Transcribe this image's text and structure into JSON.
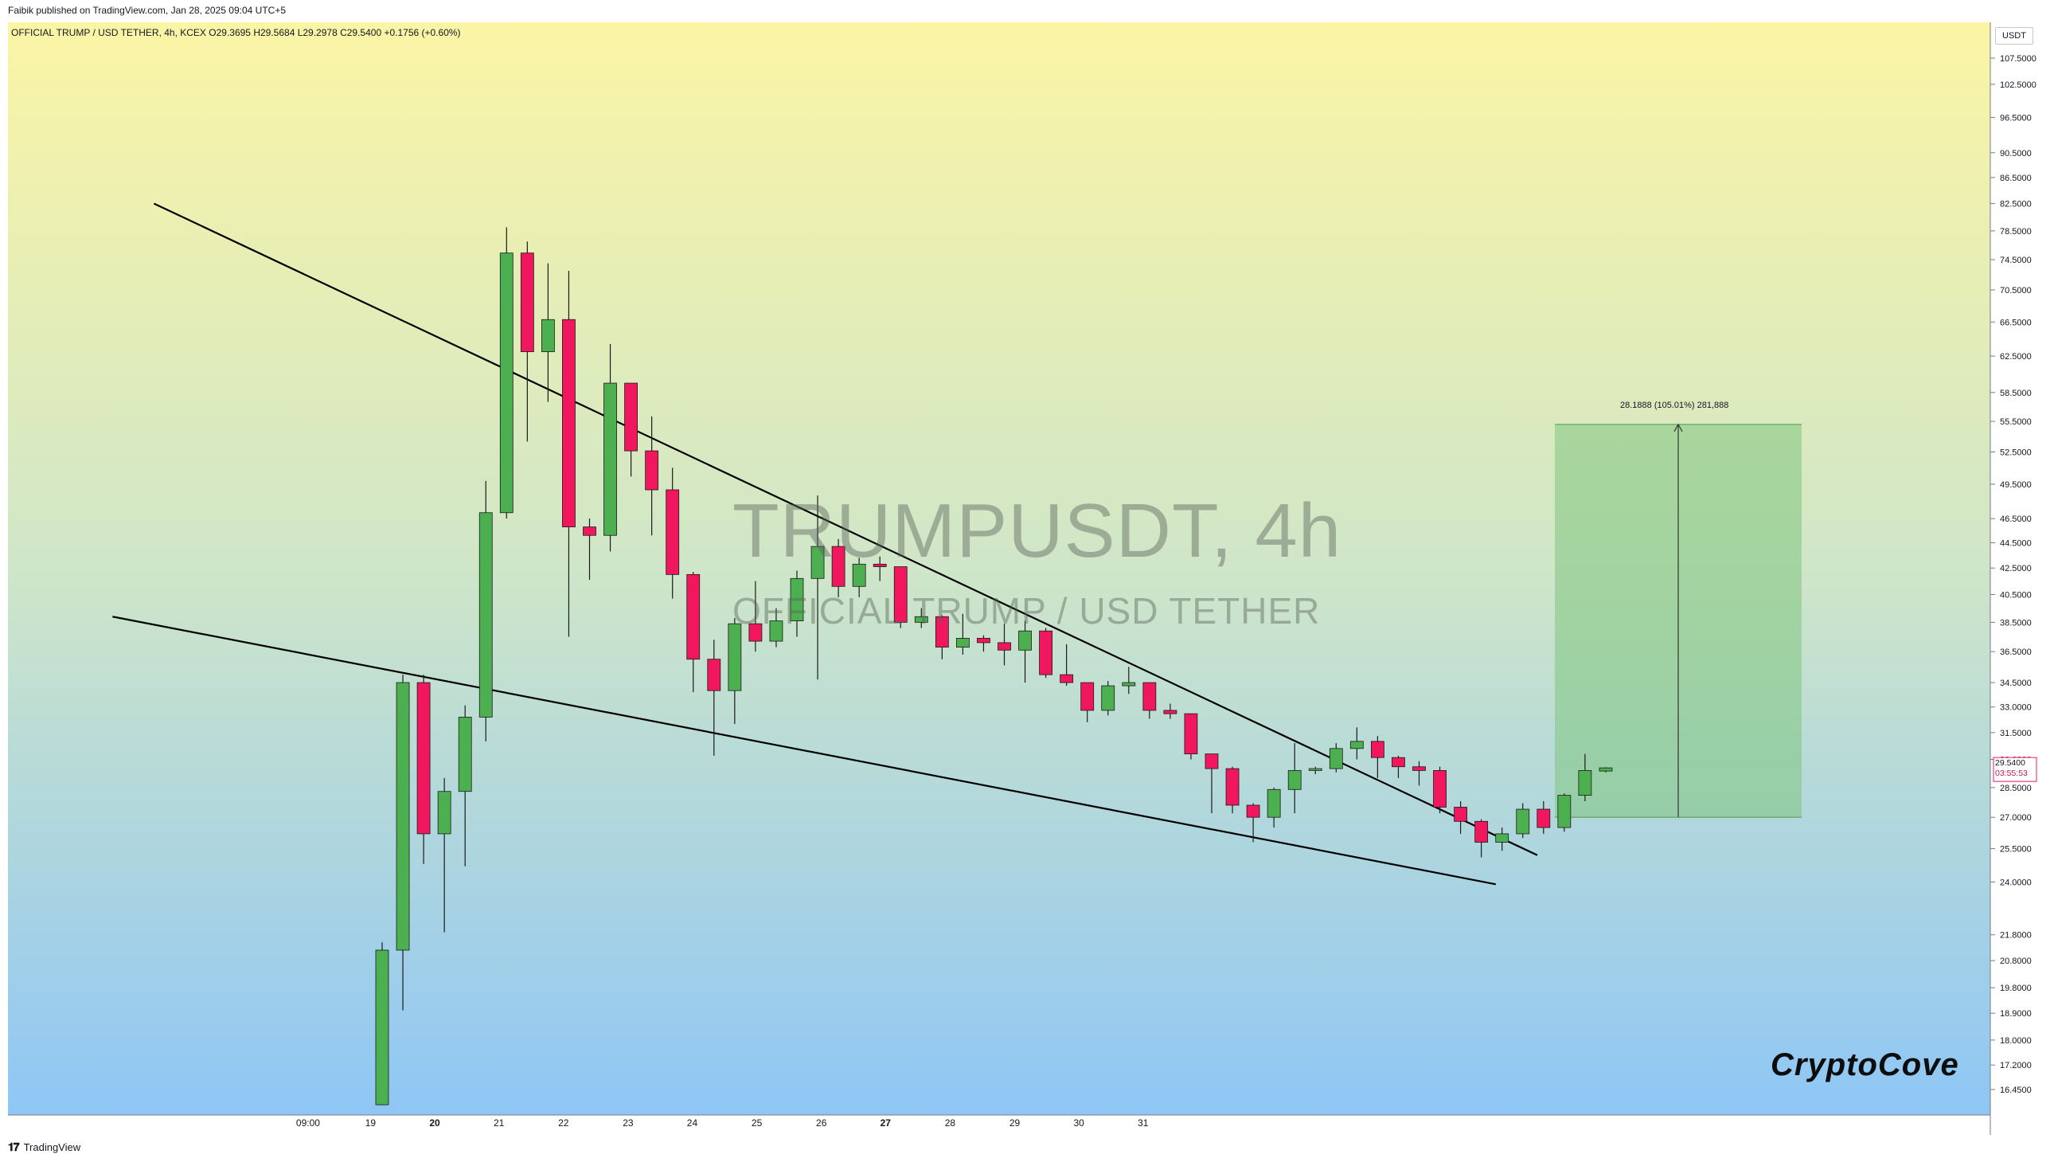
{
  "header": {
    "publisher_line": "Faibik published on TradingView.com, Jan 28, 2025 09:04 UTC+5",
    "symbol_line": "OFFICIAL TRUMP / USD TETHER, 4h, KCEX  O29.3695  H29.5684  L29.2978  C29.5400  +0.1756 (+0.60%)"
  },
  "watermark": {
    "title": "TRUMPUSDT, 4h",
    "subtitle": "OFFICIAL TRUMP / USD TETHER"
  },
  "brand": "CryptoCove",
  "footer": {
    "logo_glyph": "𝟏𝟕",
    "logo_text": "TradingView"
  },
  "price_axis": {
    "currency": "USDT",
    "scale": "log",
    "ticks": [
      "107.5000",
      "102.5000",
      "96.5000",
      "90.5000",
      "86.5000",
      "82.5000",
      "78.5000",
      "74.5000",
      "70.5000",
      "66.5000",
      "62.5000",
      "58.5000",
      "55.5000",
      "52.5000",
      "49.5000",
      "46.5000",
      "44.5000",
      "42.5000",
      "40.5000",
      "38.5000",
      "36.5000",
      "34.5000",
      "33.0000",
      "31.5000",
      "30.0000",
      "28.5000",
      "27.0000",
      "25.5000",
      "24.0000",
      "21.8000",
      "20.8000",
      "19.8000",
      "18.9000",
      "18.0000",
      "17.2000",
      "16.4500"
    ],
    "current_price": "29.5400",
    "countdown": "03:55:53"
  },
  "time_axis": {
    "ticks": [
      "09:00",
      "19",
      "20",
      "21",
      "22",
      "23",
      "24",
      "25",
      "26",
      "27",
      "28",
      "29",
      "30",
      "31"
    ],
    "bold_ticks": [
      "20",
      "27"
    ]
  },
  "measure_tool": {
    "label": "28.1888 (105.01%) 281,888",
    "from_price": 27.0,
    "to_price": 55.2
  },
  "colors": {
    "up": "#4caf50",
    "down": "#f0175f",
    "trendline": "#000000",
    "bg_top": "#fbf5a5",
    "bg_bottom": "#8ec6f5",
    "target_zone": "#7fc47f"
  },
  "chart_data": {
    "type": "candlestick",
    "title": "OFFICIAL TRUMP / USD TETHER, 4h, KCEX",
    "interval": "4h",
    "y_scale": "log",
    "ylim": [
      15.9,
      112
    ],
    "x_unit": "4h bars from Jan 19 09:00",
    "candles": [
      {
        "o": 16.0,
        "h": 21.5,
        "l": 16.0,
        "c": 21.2
      },
      {
        "o": 21.2,
        "h": 35.0,
        "l": 19.0,
        "c": 34.5
      },
      {
        "o": 34.5,
        "h": 35.0,
        "l": 24.8,
        "c": 26.2
      },
      {
        "o": 26.2,
        "h": 29.0,
        "l": 21.9,
        "c": 28.3
      },
      {
        "o": 28.3,
        "h": 33.1,
        "l": 24.7,
        "c": 32.4
      },
      {
        "o": 32.4,
        "h": 49.8,
        "l": 31.0,
        "c": 47.0
      },
      {
        "o": 47.0,
        "h": 79.0,
        "l": 46.5,
        "c": 75.4
      },
      {
        "o": 75.4,
        "h": 77.0,
        "l": 53.5,
        "c": 63.0
      },
      {
        "o": 63.0,
        "h": 74.0,
        "l": 57.5,
        "c": 66.8
      },
      {
        "o": 66.8,
        "h": 73.0,
        "l": 37.5,
        "c": 45.8
      },
      {
        "o": 45.8,
        "h": 46.5,
        "l": 41.6,
        "c": 45.1
      },
      {
        "o": 45.1,
        "h": 63.9,
        "l": 43.8,
        "c": 59.5
      },
      {
        "o": 59.5,
        "h": 59.5,
        "l": 50.2,
        "c": 52.6
      },
      {
        "o": 52.6,
        "h": 56.0,
        "l": 45.1,
        "c": 49.0
      },
      {
        "o": 49.0,
        "h": 51.0,
        "l": 40.2,
        "c": 42.0
      },
      {
        "o": 42.0,
        "h": 42.2,
        "l": 33.9,
        "c": 36.0
      },
      {
        "o": 36.0,
        "h": 37.3,
        "l": 30.2,
        "c": 34.0
      },
      {
        "o": 34.0,
        "h": 38.8,
        "l": 32.0,
        "c": 38.4
      },
      {
        "o": 38.4,
        "h": 41.5,
        "l": 36.5,
        "c": 37.2
      },
      {
        "o": 37.2,
        "h": 39.5,
        "l": 36.8,
        "c": 38.6
      },
      {
        "o": 38.6,
        "h": 42.3,
        "l": 37.5,
        "c": 41.7
      },
      {
        "o": 41.7,
        "h": 48.5,
        "l": 34.7,
        "c": 44.2
      },
      {
        "o": 44.2,
        "h": 44.8,
        "l": 40.3,
        "c": 41.1
      },
      {
        "o": 41.1,
        "h": 43.3,
        "l": 40.3,
        "c": 42.8
      },
      {
        "o": 42.8,
        "h": 43.4,
        "l": 41.5,
        "c": 42.6
      },
      {
        "o": 42.6,
        "h": 42.6,
        "l": 38.1,
        "c": 38.5
      },
      {
        "o": 38.5,
        "h": 39.5,
        "l": 38.1,
        "c": 38.9
      },
      {
        "o": 38.9,
        "h": 39.0,
        "l": 36.0,
        "c": 36.8
      },
      {
        "o": 36.8,
        "h": 39.1,
        "l": 36.3,
        "c": 37.4
      },
      {
        "o": 37.4,
        "h": 37.6,
        "l": 36.5,
        "c": 37.1
      },
      {
        "o": 37.1,
        "h": 38.4,
        "l": 35.6,
        "c": 36.6
      },
      {
        "o": 36.6,
        "h": 38.6,
        "l": 34.5,
        "c": 37.9
      },
      {
        "o": 37.9,
        "h": 38.1,
        "l": 34.8,
        "c": 35.0
      },
      {
        "o": 35.0,
        "h": 37.0,
        "l": 34.3,
        "c": 34.5
      },
      {
        "o": 34.5,
        "h": 34.5,
        "l": 32.1,
        "c": 32.8
      },
      {
        "o": 32.8,
        "h": 34.6,
        "l": 32.5,
        "c": 34.3
      },
      {
        "o": 34.3,
        "h": 35.5,
        "l": 33.8,
        "c": 34.5
      },
      {
        "o": 34.5,
        "h": 34.5,
        "l": 32.3,
        "c": 32.8
      },
      {
        "o": 32.8,
        "h": 33.2,
        "l": 32.3,
        "c": 32.6
      },
      {
        "o": 32.6,
        "h": 32.6,
        "l": 30.0,
        "c": 30.3
      },
      {
        "o": 30.3,
        "h": 30.3,
        "l": 27.2,
        "c": 29.5
      },
      {
        "o": 29.5,
        "h": 29.6,
        "l": 27.2,
        "c": 27.6
      },
      {
        "o": 27.6,
        "h": 27.7,
        "l": 25.8,
        "c": 27.0
      },
      {
        "o": 27.0,
        "h": 28.5,
        "l": 26.5,
        "c": 28.4
      },
      {
        "o": 28.4,
        "h": 30.9,
        "l": 27.2,
        "c": 29.4
      },
      {
        "o": 29.4,
        "h": 29.6,
        "l": 29.2,
        "c": 29.5
      },
      {
        "o": 29.5,
        "h": 30.9,
        "l": 29.3,
        "c": 30.6
      },
      {
        "o": 30.6,
        "h": 31.8,
        "l": 30.0,
        "c": 31.0
      },
      {
        "o": 31.0,
        "h": 31.3,
        "l": 29.0,
        "c": 30.1
      },
      {
        "o": 30.1,
        "h": 30.2,
        "l": 29.0,
        "c": 29.6
      },
      {
        "o": 29.6,
        "h": 29.9,
        "l": 28.6,
        "c": 29.4
      },
      {
        "o": 29.4,
        "h": 29.6,
        "l": 27.2,
        "c": 27.5
      },
      {
        "o": 27.5,
        "h": 27.8,
        "l": 26.2,
        "c": 26.8
      },
      {
        "o": 26.8,
        "h": 26.9,
        "l": 25.1,
        "c": 25.8
      },
      {
        "o": 25.8,
        "h": 26.5,
        "l": 25.4,
        "c": 26.2
      },
      {
        "o": 26.2,
        "h": 27.7,
        "l": 26.0,
        "c": 27.4
      },
      {
        "o": 27.4,
        "h": 27.8,
        "l": 26.2,
        "c": 26.5
      },
      {
        "o": 26.5,
        "h": 28.2,
        "l": 26.3,
        "c": 28.1
      },
      {
        "o": 28.1,
        "h": 30.3,
        "l": 27.8,
        "c": 29.4
      },
      {
        "o": 29.37,
        "h": 29.57,
        "l": 29.3,
        "c": 29.54
      }
    ],
    "trendlines": [
      {
        "from": [
          -11.0,
          82.5
        ],
        "to": [
          55.7,
          25.2
        ]
      },
      {
        "from": [
          -13.0,
          38.9
        ],
        "to": [
          53.7,
          23.9
        ]
      }
    ]
  }
}
